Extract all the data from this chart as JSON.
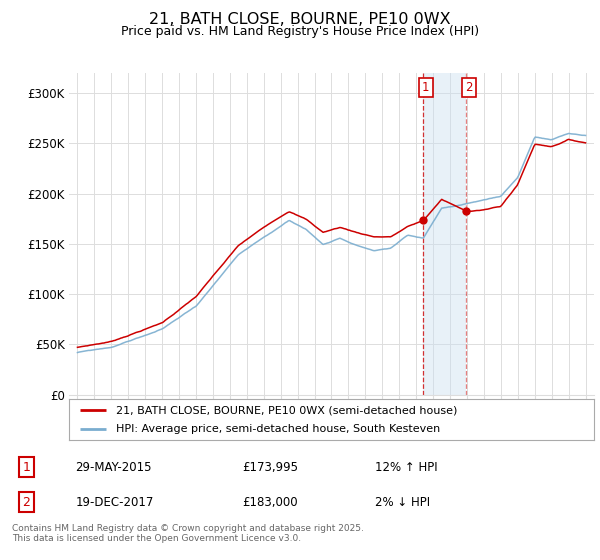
{
  "title": "21, BATH CLOSE, BOURNE, PE10 0WX",
  "subtitle": "Price paid vs. HM Land Registry's House Price Index (HPI)",
  "ylim": [
    0,
    320000
  ],
  "yticks": [
    0,
    50000,
    100000,
    150000,
    200000,
    250000,
    300000
  ],
  "ytick_labels": [
    "£0",
    "£50K",
    "£100K",
    "£150K",
    "£200K",
    "£250K",
    "£300K"
  ],
  "legend_line1": "21, BATH CLOSE, BOURNE, PE10 0WX (semi-detached house)",
  "legend_line2": "HPI: Average price, semi-detached house, South Kesteven",
  "line1_color": "#cc0000",
  "line2_color": "#7aadcf",
  "transaction1_date": "29-MAY-2015",
  "transaction1_price": "£173,995",
  "transaction1_hpi": "12% ↑ HPI",
  "transaction2_date": "19-DEC-2017",
  "transaction2_price": "£183,000",
  "transaction2_hpi": "2% ↓ HPI",
  "vline1_x": 2015.42,
  "vline2_x": 2017.96,
  "shade_start": 2015.42,
  "shade_end": 2017.96,
  "dot1_x": 2015.42,
  "dot1_y": 173995,
  "dot2_x": 2017.96,
  "dot2_y": 183000,
  "footer": "Contains HM Land Registry data © Crown copyright and database right 2025.\nThis data is licensed under the Open Government Licence v3.0.",
  "background_color": "#ffffff",
  "grid_color": "#dddddd",
  "xlim_start": 1994.5,
  "xlim_end": 2025.5,
  "label1_color": "#cc0000",
  "label2_color": "#cc0000"
}
